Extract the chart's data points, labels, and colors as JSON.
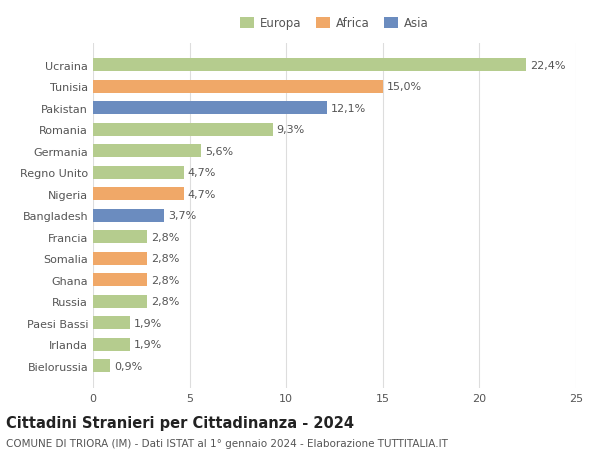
{
  "categories": [
    "Ucraina",
    "Tunisia",
    "Pakistan",
    "Romania",
    "Germania",
    "Regno Unito",
    "Nigeria",
    "Bangladesh",
    "Francia",
    "Somalia",
    "Ghana",
    "Russia",
    "Paesi Bassi",
    "Irlanda",
    "Bielorussia"
  ],
  "values": [
    22.4,
    15.0,
    12.1,
    9.3,
    5.6,
    4.7,
    4.7,
    3.7,
    2.8,
    2.8,
    2.8,
    2.8,
    1.9,
    1.9,
    0.9
  ],
  "labels": [
    "22,4%",
    "15,0%",
    "12,1%",
    "9,3%",
    "5,6%",
    "4,7%",
    "4,7%",
    "3,7%",
    "2,8%",
    "2,8%",
    "2,8%",
    "2,8%",
    "1,9%",
    "1,9%",
    "0,9%"
  ],
  "continent": [
    "Europa",
    "Africa",
    "Asia",
    "Europa",
    "Europa",
    "Europa",
    "Africa",
    "Asia",
    "Europa",
    "Africa",
    "Africa",
    "Europa",
    "Europa",
    "Europa",
    "Europa"
  ],
  "colors": {
    "Europa": "#b5cc8e",
    "Africa": "#f0a868",
    "Asia": "#6b8cbf"
  },
  "xlim": [
    0,
    25
  ],
  "xticks": [
    0,
    5,
    10,
    15,
    20,
    25
  ],
  "title": "Cittadini Stranieri per Cittadinanza - 2024",
  "subtitle": "COMUNE DI TRIORA (IM) - Dati ISTAT al 1° gennaio 2024 - Elaborazione TUTTITALIA.IT",
  "background_color": "#ffffff",
  "grid_color": "#dddddd",
  "bar_height": 0.6,
  "label_fontsize": 8,
  "tick_fontsize": 8,
  "title_fontsize": 10.5,
  "subtitle_fontsize": 7.5
}
